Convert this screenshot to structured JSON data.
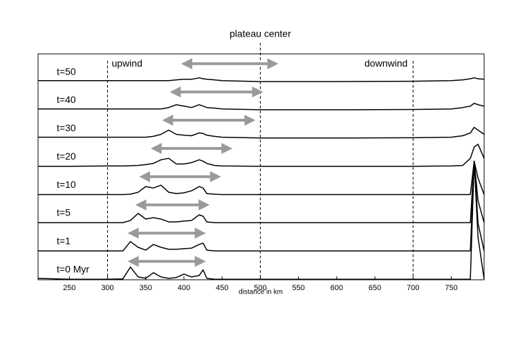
{
  "chart_data": {
    "type": "line",
    "x_label": "distance in km",
    "xlim": [
      209,
      793
    ],
    "xticks": [
      250,
      300,
      350,
      400,
      450,
      500,
      550,
      600,
      650,
      700,
      750
    ],
    "ylim": [
      0,
      8
    ],
    "x": [
      209,
      250,
      300,
      320,
      330,
      340,
      350,
      360,
      370,
      380,
      390,
      400,
      410,
      420,
      425,
      430,
      440,
      450,
      500,
      600,
      700,
      750,
      765,
      775,
      780,
      785,
      793
    ],
    "annotations": [
      {
        "text": "plateau center",
        "x": 500
      },
      {
        "text": "upwind",
        "x": 300
      },
      {
        "text": "downwind",
        "x": 700
      }
    ],
    "arrow_color": "#9a9a9a",
    "series": [
      {
        "name": "t=50",
        "color": "#000000",
        "arrow": [
          400,
          520
        ],
        "values": [
          0.05,
          0.05,
          0.05,
          0.05,
          0.05,
          0.05,
          0.05,
          0.05,
          0.05,
          0.05,
          0.08,
          0.1,
          0.1,
          0.15,
          0.12,
          0.1,
          0.08,
          0.05,
          0.02,
          0.02,
          0.03,
          0.05,
          0.08,
          0.12,
          0.15,
          0.12,
          0.1
        ]
      },
      {
        "name": "t=40",
        "color": "#000000",
        "arrow": [
          385,
          500
        ],
        "values": [
          0.05,
          0.05,
          0.05,
          0.05,
          0.05,
          0.05,
          0.05,
          0.05,
          0.05,
          0.1,
          0.2,
          0.15,
          0.1,
          0.2,
          0.15,
          0.1,
          0.08,
          0.05,
          0.02,
          0.02,
          0.03,
          0.05,
          0.1,
          0.15,
          0.25,
          0.2,
          0.15
        ]
      },
      {
        "name": "t=30",
        "color": "#000000",
        "arrow": [
          375,
          490
        ],
        "values": [
          0.05,
          0.05,
          0.05,
          0.05,
          0.05,
          0.05,
          0.05,
          0.08,
          0.15,
          0.3,
          0.15,
          0.12,
          0.1,
          0.2,
          0.18,
          0.12,
          0.08,
          0.05,
          0.02,
          0.02,
          0.03,
          0.05,
          0.1,
          0.2,
          0.4,
          0.3,
          0.15
        ]
      },
      {
        "name": "t=20",
        "color": "#000000",
        "arrow": [
          360,
          460
        ],
        "values": [
          0.02,
          0.02,
          0.03,
          0.03,
          0.04,
          0.05,
          0.08,
          0.12,
          0.25,
          0.3,
          0.1,
          0.1,
          0.15,
          0.25,
          0.2,
          0.12,
          0.05,
          0.03,
          0.02,
          0.02,
          0.02,
          0.03,
          0.05,
          0.3,
          0.7,
          0.8,
          0.3
        ]
      },
      {
        "name": "t=10",
        "color": "#000000",
        "arrow": [
          345,
          445
        ],
        "values": [
          0.02,
          0.02,
          0.02,
          0.02,
          0.03,
          0.1,
          0.3,
          0.25,
          0.35,
          0.1,
          0.05,
          0.08,
          0.15,
          0.3,
          0.25,
          0.05,
          0.03,
          0.02,
          0.02,
          0.02,
          0.02,
          0.02,
          0.02,
          0.02,
          1.2,
          0.6,
          0.02
        ]
      },
      {
        "name": "t=5",
        "color": "#000000",
        "arrow": [
          340,
          430
        ],
        "values": [
          0.02,
          0.02,
          0.02,
          0.02,
          0.1,
          0.35,
          0.15,
          0.2,
          0.15,
          0.05,
          0.05,
          0.08,
          0.1,
          0.3,
          0.25,
          0.05,
          0.02,
          0.02,
          0.02,
          0.02,
          0.02,
          0.02,
          0.02,
          0.02,
          2.2,
          0.8,
          0.02
        ]
      },
      {
        "name": "t=1",
        "color": "#000000",
        "arrow": [
          330,
          425
        ],
        "values": [
          0.02,
          0.02,
          0.02,
          0.02,
          0.35,
          0.15,
          0.05,
          0.25,
          0.15,
          0.08,
          0.08,
          0.1,
          0.12,
          0.25,
          0.3,
          0.05,
          0.02,
          0.02,
          0.02,
          0.02,
          0.02,
          0.02,
          0.02,
          0.02,
          3.2,
          1.0,
          0.02
        ]
      },
      {
        "name": "t=0 Myr",
        "color": "#000000",
        "arrow": [
          330,
          425
        ],
        "values": [
          0.05,
          0.02,
          0.02,
          0.03,
          0.45,
          0.1,
          0.05,
          0.25,
          0.1,
          0.05,
          0.08,
          0.2,
          0.1,
          0.15,
          0.35,
          0.05,
          0.02,
          0.02,
          0.02,
          0.02,
          0.02,
          0.02,
          0.02,
          0.02,
          4.2,
          1.5,
          0.02
        ]
      }
    ]
  }
}
